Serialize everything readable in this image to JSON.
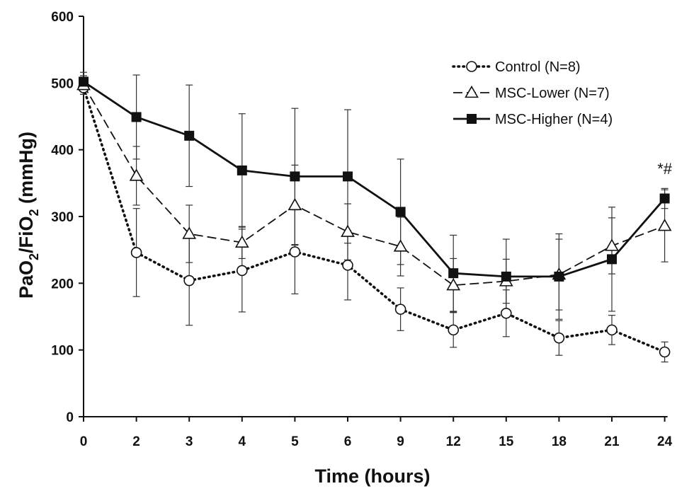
{
  "chart_data": {
    "type": "line",
    "xlabel": "Time (hours)",
    "ylabel": {
      "base1": "PaO",
      "sub1": "2",
      "mid": "/FiO",
      "sub2": "2",
      "rest": " (mmHg)"
    },
    "ylim": [
      0,
      600
    ],
    "yticks": [
      "0",
      "100",
      "200",
      "300",
      "400",
      "500",
      "600"
    ],
    "categories": [
      "0",
      "2",
      "3",
      "4",
      "5",
      "6",
      "9",
      "12",
      "15",
      "18",
      "21",
      "24"
    ],
    "grid": false,
    "legend_position": "top-right",
    "series": [
      {
        "name": "Control (N=8)",
        "line_style": "dotted",
        "marker": "open-circle",
        "values": [
          493,
          246,
          204,
          219,
          247,
          227,
          161,
          130,
          155,
          118,
          130,
          97
        ],
        "errors": [
          10,
          66,
          67,
          62,
          63,
          52,
          32,
          26,
          35,
          26,
          22,
          15
        ]
      },
      {
        "name": "MSC-Lower (N=7)",
        "line_style": "dashed",
        "marker": "open-triangle",
        "values": [
          497,
          361,
          274,
          261,
          317,
          277,
          255,
          197,
          203,
          213,
          256,
          286
        ],
        "errors": [
          14,
          44,
          43,
          24,
          60,
          42,
          44,
          40,
          33,
          53,
          42,
          54
        ]
      },
      {
        "name": "MSC-Higher (N=4)",
        "line_style": "solid",
        "marker": "filled-square",
        "values": [
          502,
          449,
          421,
          369,
          360,
          360,
          307,
          215,
          210,
          210,
          236,
          327
        ],
        "errors": [
          14,
          63,
          76,
          85,
          102,
          100,
          79,
          57,
          56,
          64,
          78,
          15
        ]
      }
    ],
    "annotations": [
      {
        "text": "*#",
        "category": "24"
      }
    ]
  }
}
